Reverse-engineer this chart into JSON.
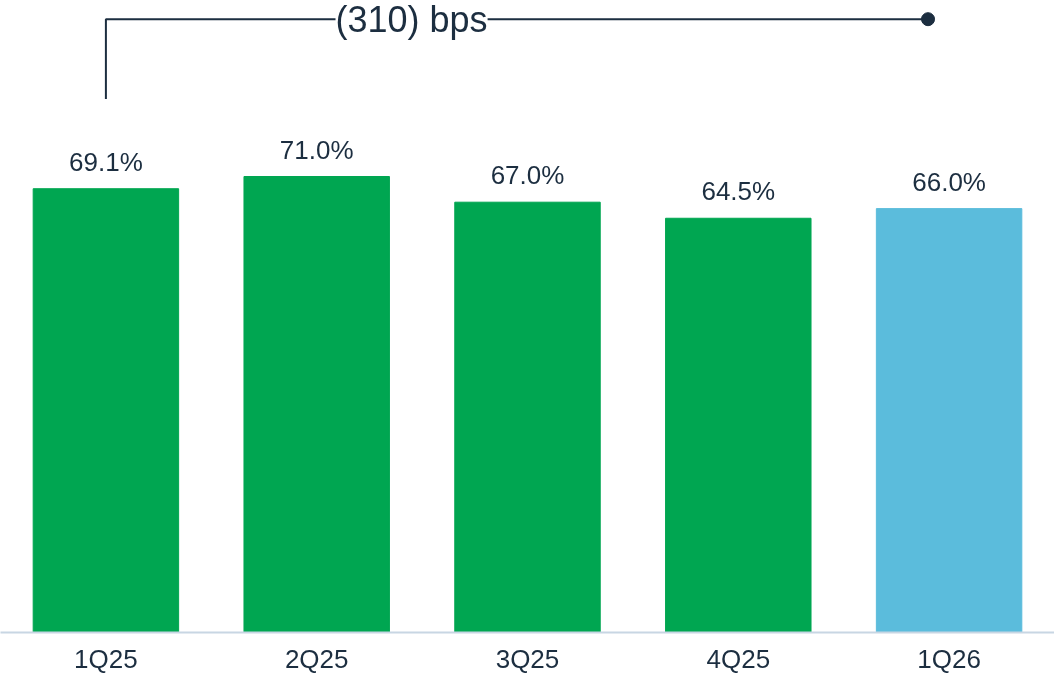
{
  "chart_data": {
    "type": "bar",
    "categories": [
      "1Q25",
      "2Q25",
      "3Q25",
      "4Q25",
      "1Q26"
    ],
    "values": [
      69.1,
      71.0,
      67.0,
      64.5,
      66.0
    ],
    "colors": [
      "#00a651",
      "#00a651",
      "#00a651",
      "#00a651",
      "#5bbcdc"
    ],
    "value_labels": [
      "69.1%",
      "71.0%",
      "67.0%",
      "64.5%",
      "66.0%"
    ],
    "annotations": [
      "(310) bps"
    ]
  }
}
